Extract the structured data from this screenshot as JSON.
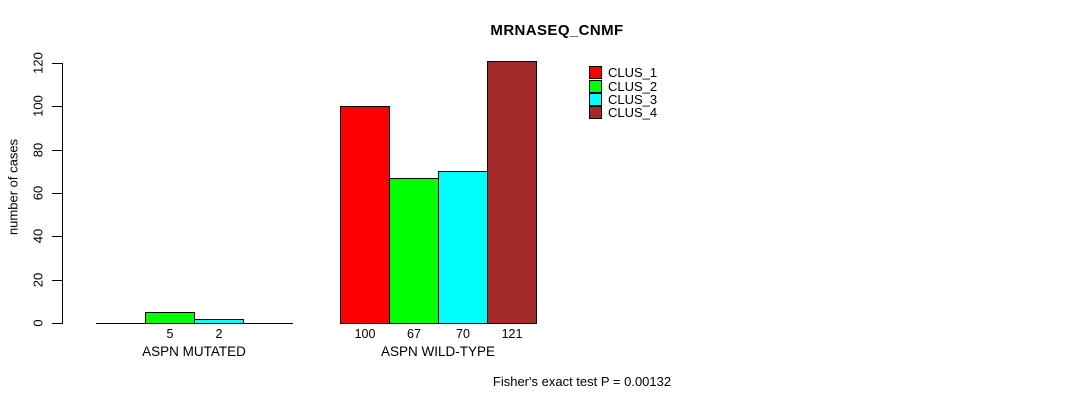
{
  "figure": {
    "background": "#FFFFFF",
    "text_color": "#000000"
  },
  "chart_data": {
    "type": "bar",
    "title": "MRNASEQ_CNMF",
    "ylabel": "number of cases",
    "xlabel": "",
    "ylim": [
      0,
      120
    ],
    "yticks": [
      0,
      20,
      40,
      60,
      80,
      100,
      120
    ],
    "grid": false,
    "categories": [
      "ASPN MUTATED",
      "ASPN WILD-TYPE"
    ],
    "series": [
      {
        "name": "CLUS_1",
        "color": "#FF0000",
        "values": [
          0,
          100
        ]
      },
      {
        "name": "CLUS_2",
        "color": "#00FF00",
        "values": [
          5,
          67
        ]
      },
      {
        "name": "CLUS_3",
        "color": "#00FFFF",
        "values": [
          2,
          70
        ]
      },
      {
        "name": "CLUS_4",
        "color": "#A52A2A",
        "values": [
          0,
          121
        ]
      }
    ],
    "bar_border_color": "#000000",
    "value_labels_shown_for_nonzero_bars": true,
    "legend_position": "top-right",
    "legend_entries": [
      "CLUS_1",
      "CLUS_2",
      "CLUS_3",
      "CLUS_4"
    ],
    "annotation": "Fisher's exact test P = 0.00132"
  }
}
